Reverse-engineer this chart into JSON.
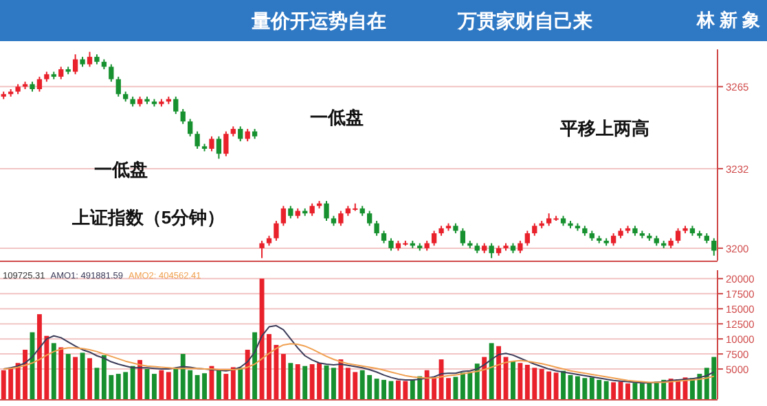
{
  "chart_data": [
    {
      "type": "candlestick",
      "title": "量价开运势自在",
      "subtitle": "万贯家财自己来",
      "annotations": [
        "林 新 象",
        "一低盘",
        "一低盘",
        "平移上两高",
        "上证指数（5分钟）"
      ],
      "categories": [
        null,
        null,
        null,
        null,
        null,
        null,
        null,
        null,
        null,
        null,
        null,
        null,
        null,
        null,
        null,
        null,
        null,
        null,
        null,
        null,
        null,
        null,
        null,
        null,
        null,
        null,
        null,
        null,
        null,
        null,
        null,
        null,
        null,
        null,
        null,
        null,
        null,
        null,
        null,
        null,
        null,
        null,
        null,
        null,
        null,
        null,
        null,
        null,
        null,
        null,
        null,
        null,
        null,
        null,
        null,
        null,
        null,
        null,
        null,
        null,
        null,
        null,
        null,
        null,
        null,
        null,
        null,
        null,
        null,
        null,
        null,
        null,
        null,
        null,
        null,
        null,
        null,
        null,
        null,
        null,
        null,
        null,
        null,
        null,
        null,
        null,
        null,
        null,
        null,
        null,
        null,
        null,
        null,
        null,
        null,
        null,
        null,
        null,
        null,
        null
      ],
      "ohlc": [
        [
          3261,
          3263,
          3260,
          3262
        ],
        [
          3262,
          3264,
          3261,
          3263
        ],
        [
          3263,
          3266,
          3262,
          3265
        ],
        [
          3265,
          3267,
          3264,
          3266
        ],
        [
          3266,
          3267,
          3263,
          3264
        ],
        [
          3264,
          3269,
          3263,
          3268
        ],
        [
          3268,
          3271,
          3267,
          3270
        ],
        [
          3270,
          3271,
          3268,
          3269
        ],
        [
          3269,
          3273,
          3268,
          3272
        ],
        [
          3272,
          3273,
          3270,
          3271
        ],
        [
          3271,
          3278,
          3270,
          3276
        ],
        [
          3276,
          3277,
          3273,
          3274
        ],
        [
          3274,
          3279,
          3273,
          3277
        ],
        [
          3277,
          3278,
          3274,
          3275
        ],
        [
          3275,
          3276,
          3272,
          3273
        ],
        [
          3273,
          3274,
          3267,
          3268
        ],
        [
          3268,
          3269,
          3261,
          3262
        ],
        [
          3262,
          3263,
          3259,
          3260
        ],
        [
          3260,
          3261,
          3257,
          3258
        ],
        [
          3258,
          3261,
          3257,
          3260
        ],
        [
          3260,
          3261,
          3258,
          3259
        ],
        [
          3259,
          3260,
          3257,
          3258
        ],
        [
          3258,
          3260,
          3257,
          3259
        ],
        [
          3259,
          3261,
          3258,
          3260
        ],
        [
          3260,
          3261,
          3254,
          3255
        ],
        [
          3255,
          3256,
          3250,
          3251
        ],
        [
          3251,
          3252,
          3245,
          3246
        ],
        [
          3246,
          3247,
          3240,
          3241
        ],
        [
          3241,
          3242,
          3239,
          3240
        ],
        [
          3240,
          3245,
          3239,
          3244
        ],
        [
          3244,
          3245,
          3236,
          3238
        ],
        [
          3238,
          3247,
          3237,
          3246
        ],
        [
          3246,
          3249,
          3245,
          3248
        ],
        [
          3248,
          3249,
          3243,
          3244
        ],
        [
          3244,
          3248,
          3243,
          3247
        ],
        [
          3247,
          3248,
          3244,
          3245
        ],
        [
          3200,
          3203,
          3196,
          3202
        ],
        [
          3202,
          3205,
          3201,
          3204
        ],
        [
          3204,
          3211,
          3203,
          3210
        ],
        [
          3210,
          3217,
          3209,
          3216
        ],
        [
          3216,
          3217,
          3212,
          3213
        ],
        [
          3213,
          3216,
          3212,
          3215
        ],
        [
          3215,
          3216,
          3213,
          3214
        ],
        [
          3214,
          3218,
          3213,
          3217
        ],
        [
          3217,
          3219,
          3216,
          3218
        ],
        [
          3218,
          3219,
          3211,
          3212
        ],
        [
          3212,
          3213,
          3209,
          3210
        ],
        [
          3210,
          3215,
          3209,
          3214
        ],
        [
          3214,
          3217,
          3213,
          3216
        ],
        [
          3216,
          3218,
          3215,
          3216
        ],
        [
          3216,
          3217,
          3213,
          3214
        ],
        [
          3214,
          3215,
          3209,
          3210
        ],
        [
          3210,
          3211,
          3205,
          3206
        ],
        [
          3206,
          3207,
          3202,
          3203
        ],
        [
          3203,
          3204,
          3199,
          3200
        ],
        [
          3200,
          3203,
          3199,
          3202
        ],
        [
          3202,
          3203,
          3201,
          3202
        ],
        [
          3202,
          3203,
          3200,
          3201
        ],
        [
          3201,
          3202,
          3199,
          3200
        ],
        [
          3200,
          3203,
          3199,
          3202
        ],
        [
          3202,
          3207,
          3201,
          3206
        ],
        [
          3206,
          3209,
          3205,
          3208
        ],
        [
          3208,
          3210,
          3207,
          3209
        ],
        [
          3209,
          3210,
          3206,
          3207
        ],
        [
          3207,
          3208,
          3201,
          3202
        ],
        [
          3202,
          3203,
          3200,
          3201
        ],
        [
          3201,
          3202,
          3198,
          3199
        ],
        [
          3199,
          3202,
          3198,
          3201
        ],
        [
          3201,
          3202,
          3196,
          3198
        ],
        [
          3198,
          3201,
          3197,
          3200
        ],
        [
          3200,
          3202,
          3199,
          3201
        ],
        [
          3201,
          3202,
          3198,
          3199
        ],
        [
          3199,
          3203,
          3198,
          3202
        ],
        [
          3202,
          3207,
          3201,
          3206
        ],
        [
          3206,
          3210,
          3205,
          3209
        ],
        [
          3209,
          3211,
          3208,
          3210
        ],
        [
          3210,
          3214,
          3209,
          3212
        ],
        [
          3212,
          3213,
          3211,
          3212
        ],
        [
          3212,
          3213,
          3209,
          3210
        ],
        [
          3210,
          3211,
          3208,
          3209
        ],
        [
          3209,
          3210,
          3207,
          3208
        ],
        [
          3208,
          3209,
          3205,
          3206
        ],
        [
          3206,
          3207,
          3203,
          3204
        ],
        [
          3204,
          3205,
          3202,
          3203
        ],
        [
          3203,
          3204,
          3201,
          3202
        ],
        [
          3202,
          3206,
          3201,
          3205
        ],
        [
          3205,
          3208,
          3204,
          3207
        ],
        [
          3207,
          3209,
          3206,
          3208
        ],
        [
          3208,
          3209,
          3205,
          3206
        ],
        [
          3206,
          3207,
          3204,
          3205
        ],
        [
          3205,
          3206,
          3203,
          3204
        ],
        [
          3204,
          3205,
          3201,
          3202
        ],
        [
          3202,
          3203,
          3200,
          3201
        ],
        [
          3201,
          3204,
          3200,
          3203
        ],
        [
          3203,
          3208,
          3202,
          3207
        ],
        [
          3207,
          3209,
          3206,
          3208
        ],
        [
          3208,
          3209,
          3205,
          3206
        ],
        [
          3206,
          3207,
          3204,
          3205
        ],
        [
          3205,
          3206,
          3202,
          3203
        ],
        [
          3203,
          3204,
          3197,
          3199
        ]
      ],
      "ylim": [
        3195,
        3280
      ],
      "yticks": [
        3200,
        3232,
        3265
      ],
      "grid": "y"
    },
    {
      "type": "bar",
      "annotations": [
        "109725.31"
      ],
      "legend": "top left",
      "grid": "y",
      "categories": [
        null,
        null,
        null,
        null,
        null,
        null,
        null,
        null,
        null,
        null,
        null,
        null,
        null,
        null,
        null,
        null,
        null,
        null,
        null,
        null,
        null,
        null,
        null,
        null,
        null,
        null,
        null,
        null,
        null,
        null,
        null,
        null,
        null,
        null,
        null,
        null,
        null,
        null,
        null,
        null,
        null,
        null,
        null,
        null,
        null,
        null,
        null,
        null,
        null,
        null,
        null,
        null,
        null,
        null,
        null,
        null,
        null,
        null,
        null,
        null,
        null,
        null,
        null,
        null,
        null,
        null,
        null,
        null,
        null,
        null,
        null,
        null,
        null,
        null,
        null,
        null,
        null,
        null,
        null,
        null,
        null,
        null,
        null,
        null,
        null,
        null,
        null,
        null,
        null,
        null,
        null,
        null,
        null,
        null,
        null,
        null,
        null,
        null,
        null,
        null
      ],
      "series": [
        {
          "type": "bar",
          "values": [
            4800,
            5200,
            6000,
            8200,
            11100,
            14100,
            10500,
            9300,
            8600,
            7500,
            7000,
            7700,
            6800,
            5200,
            7300,
            4000,
            4200,
            4500,
            5500,
            6500,
            5000,
            4200,
            4800,
            4500,
            5000,
            7500,
            4800,
            4000,
            4300,
            5500,
            4800,
            4200,
            5300,
            5200,
            8200,
            11100,
            20000,
            10800,
            9000,
            7500,
            6000,
            5800,
            5500,
            5800,
            6000,
            5600,
            5200,
            6600,
            5200,
            4500,
            4800,
            4000,
            3400,
            3200,
            3000,
            3100,
            3000,
            3300,
            3800,
            4800,
            3600,
            6600,
            3500,
            3700,
            4400,
            4500,
            5900,
            7000,
            9300,
            8800,
            7000,
            6300,
            6000,
            5700,
            5200,
            5000,
            4600,
            4400,
            4700,
            4000,
            3800,
            3500,
            3600,
            3200,
            3000,
            2800,
            2900,
            2600,
            2700,
            2600,
            2700,
            2900,
            3200,
            3400,
            3300,
            3600,
            3500,
            4200,
            5200,
            7000
          ],
          "colors": [
            "#e8212b",
            "#e8212b",
            "#e8212b",
            "#e8212b",
            "#17912f",
            "#e8212b",
            "#e8212b",
            "#17912f",
            "#e8212b",
            "#17912f",
            "#e8212b",
            "#17912f",
            "#e8212b",
            "#17912f",
            "#17912f",
            "#17912f",
            "#17912f",
            "#17912f",
            "#17912f",
            "#e8212b",
            "#17912f",
            "#17912f",
            "#e8212b",
            "#e8212b",
            "#17912f",
            "#17912f",
            "#17912f",
            "#17912f",
            "#17912f",
            "#e8212b",
            "#17912f",
            "#e8212b",
            "#e8212b",
            "#17912f",
            "#e8212b",
            "#17912f",
            "#e8212b",
            "#e8212b",
            "#e8212b",
            "#e8212b",
            "#17912f",
            "#e8212b",
            "#17912f",
            "#e8212b",
            "#e8212b",
            "#17912f",
            "#17912f",
            "#e8212b",
            "#e8212b",
            "#e8212b",
            "#17912f",
            "#17912f",
            "#17912f",
            "#17912f",
            "#17912f",
            "#e8212b",
            "#e8212b",
            "#17912f",
            "#17912f",
            "#e8212b",
            "#e8212b",
            "#e8212b",
            "#e8212b",
            "#17912f",
            "#17912f",
            "#17912f",
            "#17912f",
            "#e8212b",
            "#17912f",
            "#e8212b",
            "#e8212b",
            "#17912f",
            "#e8212b",
            "#e8212b",
            "#e8212b",
            "#e8212b",
            "#e8212b",
            "#e8212b",
            "#17912f",
            "#17912f",
            "#17912f",
            "#17912f",
            "#17912f",
            "#17912f",
            "#17912f",
            "#e8212b",
            "#e8212b",
            "#e8212b",
            "#17912f",
            "#17912f",
            "#17912f",
            "#17912f",
            "#17912f",
            "#e8212b",
            "#e8212b",
            "#e8212b",
            "#17912f",
            "#17912f",
            "#17912f",
            "#17912f"
          ]
        },
        {
          "type": "line",
          "name": "AMO1: 491881.59",
          "color": "#3c3c5a",
          "values": [
            5000,
            5200,
            5500,
            6000,
            7000,
            8500,
            10000,
            10500,
            10200,
            9500,
            8800,
            8200,
            7800,
            7200,
            6800,
            6200,
            5800,
            5500,
            5200,
            5200,
            5200,
            5100,
            5000,
            5000,
            5200,
            5400,
            5300,
            5100,
            5000,
            4900,
            4800,
            4700,
            4900,
            5300,
            6200,
            7800,
            10500,
            12000,
            12200,
            11500,
            10000,
            8500,
            7200,
            6500,
            6000,
            5800,
            5700,
            5800,
            5600,
            5400,
            5200,
            4900,
            4500,
            4000,
            3600,
            3300,
            3200,
            3200,
            3300,
            3500,
            3700,
            4200,
            4300,
            4300,
            4600,
            4700,
            5000,
            5700,
            6600,
            7400,
            7600,
            7300,
            6800,
            6300,
            5800,
            5400,
            5000,
            4700,
            4500,
            4300,
            4100,
            3900,
            3700,
            3500,
            3300,
            3100,
            3000,
            2900,
            2800,
            2700,
            2700,
            2800,
            2900,
            3100,
            3200,
            3300,
            3400,
            3600,
            3900,
            4500
          ]
        },
        {
          "type": "line",
          "name": "AMO2: 404562.41",
          "color": "#f0a050",
          "values": [
            5000,
            5100,
            5300,
            5600,
            6000,
            6600,
            7300,
            7900,
            8300,
            8500,
            8500,
            8400,
            8200,
            7900,
            7500,
            7100,
            6700,
            6300,
            6000,
            5700,
            5500,
            5400,
            5300,
            5200,
            5100,
            5100,
            5100,
            5100,
            5000,
            5000,
            4900,
            4900,
            4900,
            5000,
            5300,
            5800,
            6700,
            7600,
            8400,
            9000,
            9200,
            9100,
            8800,
            8300,
            7700,
            7100,
            6600,
            6200,
            5900,
            5700,
            5500,
            5300,
            5100,
            4800,
            4500,
            4200,
            3900,
            3700,
            3600,
            3500,
            3500,
            3700,
            3900,
            4000,
            4200,
            4400,
            4600,
            4900,
            5300,
            5700,
            6100,
            6300,
            6400,
            6300,
            6100,
            5900,
            5600,
            5300,
            5000,
            4700,
            4500,
            4300,
            4100,
            3900,
            3700,
            3500,
            3300,
            3100,
            3000,
            2900,
            2800,
            2800,
            2800,
            2900,
            3000,
            3100,
            3200,
            3300,
            3500,
            3800
          ]
        }
      ],
      "ylim": [
        0,
        21400
      ],
      "yticks": [
        5000,
        7500,
        10000,
        12500,
        15000,
        17500,
        20000
      ]
    }
  ]
}
